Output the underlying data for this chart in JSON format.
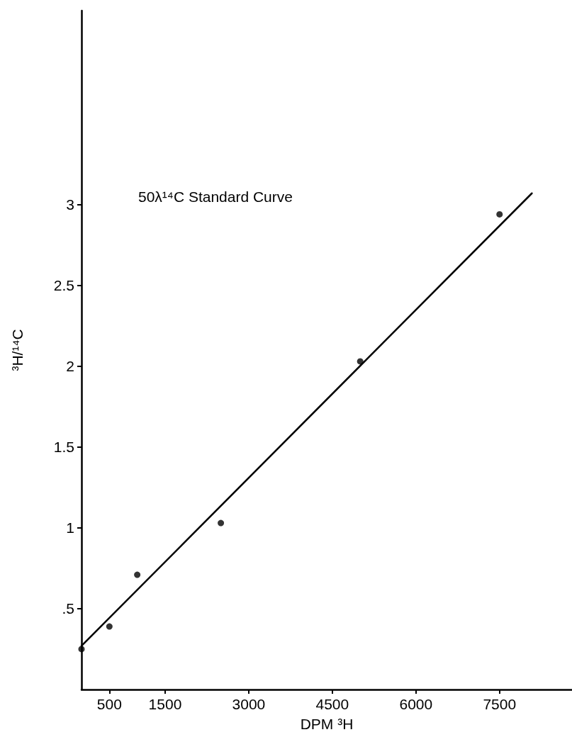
{
  "chart_data": {
    "type": "scatter",
    "title": "50λ¹⁴C Standard Curve",
    "xlabel": "DPM ³H",
    "ylabel": "³H/¹⁴C",
    "x": [
      0,
      500,
      1000,
      2500,
      5000,
      7500
    ],
    "series": [
      {
        "color": "#000000",
        "values": [
          0.25,
          0.39,
          0.71,
          1.03,
          2.03,
          2.94
        ]
      },
      {
        "type": "line",
        "color": "#000000",
        "x": [
          0,
          8080
        ],
        "values": [
          0.27,
          3.07
        ],
        "marker": "none"
      }
    ],
    "marker": "circle",
    "xlim": [
      0,
      8800
    ],
    "xticks": [
      500,
      1500,
      3000,
      4500,
      6000,
      7500
    ],
    "ylim": [
      0,
      4.2
    ],
    "yticks": [
      {
        "value": 0.5,
        "label": ".5"
      },
      1,
      1.5,
      2,
      2.5,
      3
    ],
    "grid": false
  }
}
